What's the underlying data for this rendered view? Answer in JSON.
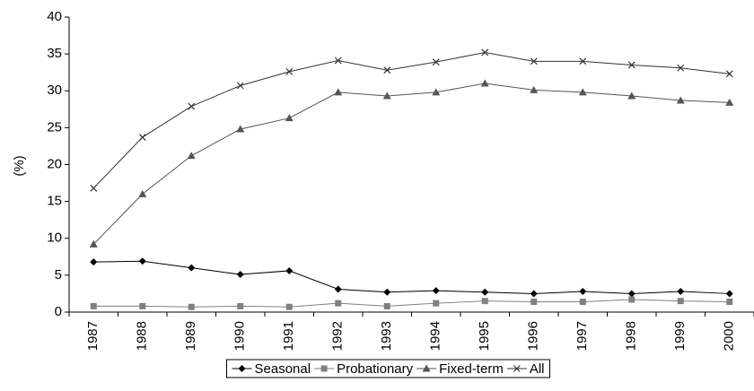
{
  "chart_data": {
    "type": "line",
    "y_label": "(%)",
    "categories": [
      "1987",
      "1988",
      "1989",
      "1990",
      "1991",
      "1992",
      "1993",
      "1994",
      "1995",
      "1996",
      "1997",
      "1998",
      "1999",
      "2000"
    ],
    "series": [
      {
        "name": "Seasonal",
        "color": "#000000",
        "marker": "diamond",
        "values": [
          6.8,
          6.9,
          6.0,
          5.1,
          5.6,
          3.1,
          2.7,
          2.9,
          2.7,
          2.5,
          2.8,
          2.5,
          2.8,
          2.5
        ]
      },
      {
        "name": "Probationary",
        "color": "#808080",
        "marker": "square",
        "values": [
          0.8,
          0.8,
          0.7,
          0.8,
          0.7,
          1.2,
          0.8,
          1.2,
          1.5,
          1.4,
          1.4,
          1.7,
          1.5,
          1.4
        ]
      },
      {
        "name": "Fixed-term",
        "color": "#555555",
        "marker": "triangle",
        "values": [
          9.2,
          16.0,
          21.2,
          24.8,
          26.3,
          29.8,
          29.3,
          29.8,
          31.0,
          30.1,
          29.8,
          29.3,
          28.7,
          28.4
        ]
      },
      {
        "name": "All",
        "color": "#333333",
        "marker": "x",
        "values": [
          16.8,
          23.7,
          27.9,
          30.7,
          32.6,
          34.1,
          32.8,
          33.9,
          35.2,
          34.0,
          34.0,
          33.5,
          33.1,
          32.3
        ]
      }
    ],
    "ylim": [
      0,
      40
    ],
    "yticks": [
      0,
      5,
      10,
      15,
      20,
      25,
      30,
      35,
      40
    ],
    "grid": false,
    "legend": "bottom"
  }
}
